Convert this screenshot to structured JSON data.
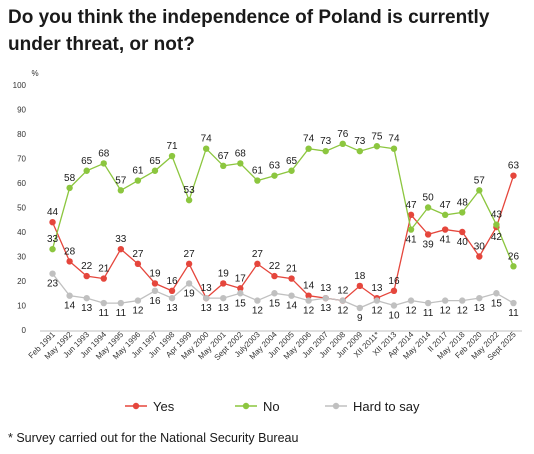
{
  "chart_data": {
    "type": "line",
    "title": "Do you think the independence of Poland is currently under threat, or not?",
    "ylabel": "%",
    "ylim": [
      0,
      100
    ],
    "yticks": [
      0,
      10,
      20,
      30,
      40,
      50,
      60,
      70,
      80,
      90,
      100
    ],
    "grid": false,
    "legend_position": "bottom",
    "x": [
      "Feb 1991",
      "May 1992",
      "Jun 1993",
      "Jun 1994",
      "May 1995",
      "May 1996",
      "Jun 1997",
      "Jun 1998",
      "Apr 1999",
      "May 2000",
      "May 2001",
      "Sept 2002",
      "July2003",
      "May 2004",
      "Jun 2005",
      "May 2006",
      "Jun 2007",
      "Jun 2008",
      "Jun 2009",
      "XII 2011*",
      "XII 2013",
      "Apr 2014",
      "May 2014",
      "II 2017",
      "May 2018",
      "Feb 2020",
      "May 2022",
      "Sept 2025"
    ],
    "series": [
      {
        "name": "Yes",
        "color": "#e5463c",
        "values": [
          44,
          28,
          22,
          21,
          33,
          27,
          19,
          16,
          27,
          13,
          19,
          17,
          27,
          22,
          21,
          14,
          13,
          12,
          18,
          13,
          16,
          47,
          39,
          41,
          40,
          30,
          42,
          63
        ]
      },
      {
        "name": "No",
        "color": "#8cc63f",
        "values": [
          33,
          58,
          65,
          68,
          57,
          61,
          65,
          71,
          53,
          74,
          67,
          68,
          61,
          63,
          65,
          74,
          73,
          76,
          73,
          75,
          74,
          41,
          50,
          47,
          48,
          57,
          43,
          26
        ]
      },
      {
        "name": "Hard to say",
        "color": "#c0c0c0",
        "values": [
          23,
          14,
          13,
          11,
          11,
          12,
          16,
          13,
          19,
          13,
          13,
          15,
          12,
          15,
          14,
          12,
          13,
          12,
          9,
          12,
          10,
          12,
          11,
          12,
          12,
          13,
          15,
          11
        ]
      }
    ],
    "note": "* Survey carried out for the National Security Bureau"
  }
}
